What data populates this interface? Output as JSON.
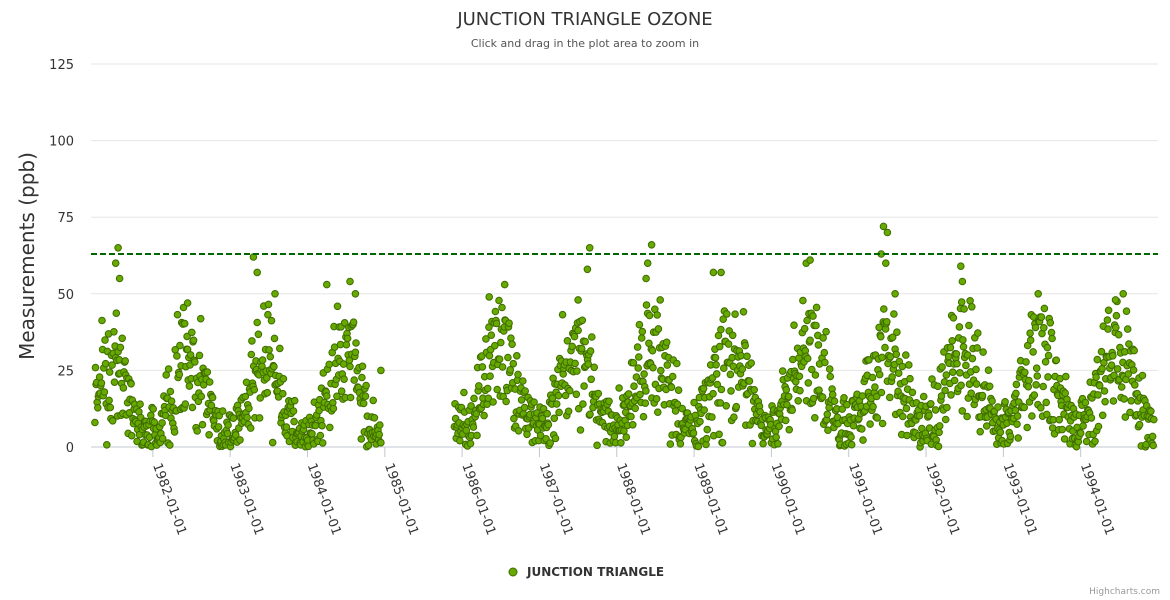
{
  "chart_data": {
    "type": "scatter",
    "title": "JUNCTION TRIANGLE OZONE",
    "subtitle": "Click and drag in the plot area to zoom in",
    "ylabel": "Measurements (ppb)",
    "xlabel": "",
    "ylim": [
      0,
      125
    ],
    "yticks": [
      "0",
      "25",
      "50",
      "75",
      "100",
      "125"
    ],
    "xlim": [
      1981.2,
      1995.0
    ],
    "xticks": [
      {
        "year": 1982,
        "label": "1982-01-01"
      },
      {
        "year": 1983,
        "label": "1983-01-01"
      },
      {
        "year": 1984,
        "label": "1984-01-01"
      },
      {
        "year": 1985,
        "label": "1985-01-01"
      },
      {
        "year": 1986,
        "label": "1986-01-01"
      },
      {
        "year": 1987,
        "label": "1987-01-01"
      },
      {
        "year": 1988,
        "label": "1988-01-01"
      },
      {
        "year": 1989,
        "label": "1989-01-01"
      },
      {
        "year": 1990,
        "label": "1990-01-01"
      },
      {
        "year": 1991,
        "label": "1991-01-01"
      },
      {
        "year": 1992,
        "label": "1992-01-01"
      },
      {
        "year": 1993,
        "label": "1993-01-01"
      },
      {
        "year": 1994,
        "label": "1994-01-01"
      }
    ],
    "threshold": 63,
    "grid": true,
    "legend_position": "bottom-center",
    "series": [
      {
        "name": "JUNCTION TRIANGLE",
        "color": "#66aa00",
        "stroke": "#3f6b00",
        "segments": [
          [
            1981.25,
            1984.95
          ],
          [
            1985.9,
            1994.95
          ]
        ],
        "monthly_mean": [
          4,
          6,
          10,
          16,
          22,
          26,
          27,
          24,
          18,
          12,
          7,
          4
        ],
        "peaks": [
          {
            "x": 1981.55,
            "y": 65
          },
          {
            "x": 1981.52,
            "y": 60
          },
          {
            "x": 1981.57,
            "y": 55
          },
          {
            "x": 1982.45,
            "y": 47
          },
          {
            "x": 1983.3,
            "y": 62
          },
          {
            "x": 1983.35,
            "y": 57
          },
          {
            "x": 1983.58,
            "y": 50
          },
          {
            "x": 1984.25,
            "y": 53
          },
          {
            "x": 1984.55,
            "y": 54
          },
          {
            "x": 1984.62,
            "y": 50
          },
          {
            "x": 1984.95,
            "y": 25
          },
          {
            "x": 1986.35,
            "y": 49
          },
          {
            "x": 1986.55,
            "y": 53
          },
          {
            "x": 1987.5,
            "y": 48
          },
          {
            "x": 1987.65,
            "y": 65
          },
          {
            "x": 1987.62,
            "y": 58
          },
          {
            "x": 1988.45,
            "y": 66
          },
          {
            "x": 1988.4,
            "y": 60
          },
          {
            "x": 1988.38,
            "y": 55
          },
          {
            "x": 1989.25,
            "y": 57
          },
          {
            "x": 1989.35,
            "y": 57
          },
          {
            "x": 1990.45,
            "y": 60
          },
          {
            "x": 1990.5,
            "y": 61
          },
          {
            "x": 1991.45,
            "y": 72
          },
          {
            "x": 1991.5,
            "y": 70
          },
          {
            "x": 1991.42,
            "y": 63
          },
          {
            "x": 1991.48,
            "y": 60
          },
          {
            "x": 1991.6,
            "y": 50
          },
          {
            "x": 1992.45,
            "y": 59
          },
          {
            "x": 1992.47,
            "y": 54
          },
          {
            "x": 1993.45,
            "y": 50
          },
          {
            "x": 1994.55,
            "y": 50
          },
          {
            "x": 1994.45,
            "y": 48
          }
        ]
      }
    ]
  },
  "credits": "Highcharts.com"
}
